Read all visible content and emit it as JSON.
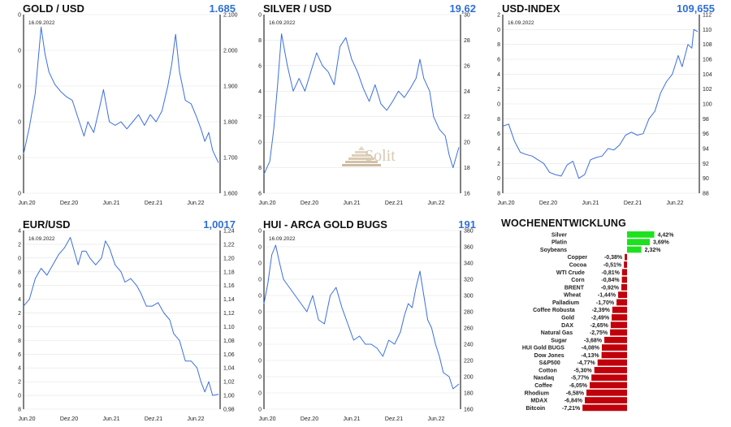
{
  "panels": [
    {
      "title": "GOLD / USD",
      "value": "1.685",
      "date": "16.09.2022",
      "source": "Solit"
    },
    {
      "title": "SILVER / USD",
      "value": "19,62",
      "date": "16.09.2022"
    },
    {
      "title": "USD-INDEX",
      "value": "109,655",
      "date": "16.09.2022"
    },
    {
      "title": "EUR/USD",
      "value": "1,0017",
      "date": "16.09.2022"
    },
    {
      "title": "HUI - ARCA GOLD BUGS",
      "value": "191",
      "date": "16.09.2022"
    }
  ],
  "weekly_title": "WOCHENENTWICKLUNG",
  "logo_text": "Solit",
  "colors": {
    "line": "#3b6fe0",
    "value": "#2f6fd6",
    "positive": "#1fe01f",
    "negative": "#c0000a",
    "grid": "#e3e3e3"
  },
  "chart_data": [
    {
      "type": "line",
      "title": "GOLD / USD",
      "x_ticks": [
        "Jun.20",
        "Dez.20",
        "Jun.21",
        "Dez.21",
        "Jun.22"
      ],
      "y_ticks": [
        "1.600",
        "1.700",
        "1.800",
        "1.900",
        "2.000",
        "2.100"
      ],
      "ylim": [
        1600,
        2100
      ],
      "series": [
        {
          "points": [
            [
              0,
              1710
            ],
            [
              0.03,
              1785
            ],
            [
              0.06,
              1880
            ],
            [
              0.09,
              2065
            ],
            [
              0.11,
              1990
            ],
            [
              0.13,
              1940
            ],
            [
              0.16,
              1905
            ],
            [
              0.19,
              1885
            ],
            [
              0.22,
              1870
            ],
            [
              0.25,
              1860
            ],
            [
              0.28,
              1810
            ],
            [
              0.31,
              1760
            ],
            [
              0.33,
              1800
            ],
            [
              0.36,
              1770
            ],
            [
              0.39,
              1840
            ],
            [
              0.41,
              1890
            ],
            [
              0.44,
              1800
            ],
            [
              0.47,
              1790
            ],
            [
              0.5,
              1800
            ],
            [
              0.53,
              1780
            ],
            [
              0.56,
              1800
            ],
            [
              0.59,
              1820
            ],
            [
              0.62,
              1790
            ],
            [
              0.65,
              1820
            ],
            [
              0.68,
              1800
            ],
            [
              0.71,
              1830
            ],
            [
              0.74,
              1900
            ],
            [
              0.76,
              1960
            ],
            [
              0.78,
              2045
            ],
            [
              0.8,
              1940
            ],
            [
              0.83,
              1860
            ],
            [
              0.86,
              1850
            ],
            [
              0.89,
              1810
            ],
            [
              0.91,
              1780
            ],
            [
              0.93,
              1745
            ],
            [
              0.95,
              1770
            ],
            [
              0.97,
              1720
            ],
            [
              1,
              1685
            ]
          ]
        }
      ]
    },
    {
      "type": "line",
      "title": "SILVER / USD",
      "x_ticks": [
        "Jun.20",
        "Dez.20",
        "Jun.21",
        "Dez.21",
        "Jun.22"
      ],
      "y_ticks": [
        "16",
        "18",
        "20",
        "22",
        "24",
        "26",
        "28",
        "30"
      ],
      "ylim": [
        16,
        30
      ],
      "series": [
        {
          "points": [
            [
              0,
              17.5
            ],
            [
              0.03,
              18.5
            ],
            [
              0.05,
              21
            ],
            [
              0.07,
              24.5
            ],
            [
              0.09,
              28.5
            ],
            [
              0.12,
              26
            ],
            [
              0.15,
              24
            ],
            [
              0.18,
              25
            ],
            [
              0.21,
              24
            ],
            [
              0.24,
              25.5
            ],
            [
              0.27,
              27
            ],
            [
              0.3,
              26
            ],
            [
              0.33,
              25.5
            ],
            [
              0.36,
              24.5
            ],
            [
              0.39,
              27.5
            ],
            [
              0.42,
              28.2
            ],
            [
              0.45,
              26.5
            ],
            [
              0.48,
              25.5
            ],
            [
              0.51,
              24.2
            ],
            [
              0.54,
              23.2
            ],
            [
              0.57,
              24.5
            ],
            [
              0.6,
              23
            ],
            [
              0.63,
              22.5
            ],
            [
              0.66,
              23.2
            ],
            [
              0.69,
              24
            ],
            [
              0.72,
              23.5
            ],
            [
              0.75,
              24.2
            ],
            [
              0.78,
              25
            ],
            [
              0.8,
              26.5
            ],
            [
              0.82,
              25
            ],
            [
              0.85,
              24
            ],
            [
              0.87,
              22
            ],
            [
              0.9,
              21
            ],
            [
              0.93,
              20.5
            ],
            [
              0.95,
              19
            ],
            [
              0.97,
              18
            ],
            [
              1,
              19.6
            ]
          ]
        }
      ]
    },
    {
      "type": "line",
      "title": "USD-INDEX",
      "x_ticks": [
        "Jun.20",
        "Dez.20",
        "Jun.21",
        "Dez.21",
        "Jun.22"
      ],
      "y_ticks": [
        "88",
        "90",
        "92",
        "94",
        "96",
        "98",
        "100",
        "102",
        "104",
        "106",
        "108",
        "110",
        "112"
      ],
      "ylim": [
        88,
        112
      ],
      "series": [
        {
          "points": [
            [
              0,
              97
            ],
            [
              0.03,
              97.3
            ],
            [
              0.06,
              95
            ],
            [
              0.09,
              93.5
            ],
            [
              0.12,
              93.2
            ],
            [
              0.15,
              93
            ],
            [
              0.18,
              92.5
            ],
            [
              0.21,
              92
            ],
            [
              0.24,
              90.8
            ],
            [
              0.27,
              90.5
            ],
            [
              0.3,
              90.3
            ],
            [
              0.33,
              91.8
            ],
            [
              0.36,
              92.3
            ],
            [
              0.39,
              90
            ],
            [
              0.42,
              90.5
            ],
            [
              0.45,
              92.5
            ],
            [
              0.48,
              92.8
            ],
            [
              0.51,
              93
            ],
            [
              0.54,
              94
            ],
            [
              0.57,
              93.8
            ],
            [
              0.6,
              94.5
            ],
            [
              0.63,
              95.8
            ],
            [
              0.66,
              96.2
            ],
            [
              0.69,
              95.8
            ],
            [
              0.72,
              96
            ],
            [
              0.75,
              98
            ],
            [
              0.78,
              99
            ],
            [
              0.81,
              101.5
            ],
            [
              0.84,
              103
            ],
            [
              0.87,
              104
            ],
            [
              0.9,
              106.5
            ],
            [
              0.92,
              105
            ],
            [
              0.95,
              108
            ],
            [
              0.97,
              107.5
            ],
            [
              0.98,
              110
            ],
            [
              1,
              109.7
            ]
          ]
        }
      ]
    },
    {
      "type": "line",
      "title": "EUR/USD",
      "x_ticks": [
        "Jun.20",
        "Dez.20",
        "Jun.21",
        "Dez.21",
        "Jun.22"
      ],
      "y_ticks": [
        "0,98",
        "1,00",
        "1,02",
        "1,04",
        "1,06",
        "1,08",
        "1,10",
        "1,12",
        "1,14",
        "1,16",
        "1,18",
        "1,20",
        "1,22",
        "1,24"
      ],
      "ylim": [
        0.98,
        1.24
      ],
      "series": [
        {
          "points": [
            [
              0,
              1.13
            ],
            [
              0.03,
              1.14
            ],
            [
              0.06,
              1.17
            ],
            [
              0.09,
              1.185
            ],
            [
              0.12,
              1.175
            ],
            [
              0.15,
              1.19
            ],
            [
              0.18,
              1.205
            ],
            [
              0.21,
              1.215
            ],
            [
              0.24,
              1.23
            ],
            [
              0.26,
              1.21
            ],
            [
              0.28,
              1.19
            ],
            [
              0.3,
              1.21
            ],
            [
              0.32,
              1.21
            ],
            [
              0.34,
              1.2
            ],
            [
              0.37,
              1.19
            ],
            [
              0.4,
              1.2
            ],
            [
              0.42,
              1.225
            ],
            [
              0.44,
              1.215
            ],
            [
              0.47,
              1.19
            ],
            [
              0.5,
              1.18
            ],
            [
              0.52,
              1.165
            ],
            [
              0.55,
              1.17
            ],
            [
              0.58,
              1.16
            ],
            [
              0.6,
              1.15
            ],
            [
              0.63,
              1.13
            ],
            [
              0.66,
              1.13
            ],
            [
              0.69,
              1.135
            ],
            [
              0.72,
              1.12
            ],
            [
              0.75,
              1.11
            ],
            [
              0.77,
              1.09
            ],
            [
              0.8,
              1.08
            ],
            [
              0.83,
              1.05
            ],
            [
              0.86,
              1.05
            ],
            [
              0.89,
              1.04
            ],
            [
              0.91,
              1.02
            ],
            [
              0.93,
              1.005
            ],
            [
              0.95,
              1.02
            ],
            [
              0.97,
              1.0
            ],
            [
              1,
              1.0017
            ]
          ]
        }
      ]
    },
    {
      "type": "line",
      "title": "HUI - ARCA GOLD BUGS",
      "x_ticks": [
        "Jun.20",
        "Dez.20",
        "Jun.21",
        "Dez.21",
        "Jun.22"
      ],
      "y_ticks": [
        "160",
        "180",
        "200",
        "220",
        "240",
        "260",
        "280",
        "300",
        "320",
        "340",
        "360",
        "380"
      ],
      "ylim": [
        160,
        380
      ],
      "series": [
        {
          "points": [
            [
              0,
              290
            ],
            [
              0.02,
              315
            ],
            [
              0.04,
              350
            ],
            [
              0.06,
              362
            ],
            [
              0.08,
              340
            ],
            [
              0.1,
              320
            ],
            [
              0.13,
              310
            ],
            [
              0.16,
              300
            ],
            [
              0.19,
              290
            ],
            [
              0.22,
              280
            ],
            [
              0.25,
              300
            ],
            [
              0.28,
              270
            ],
            [
              0.31,
              265
            ],
            [
              0.34,
              300
            ],
            [
              0.37,
              310
            ],
            [
              0.4,
              285
            ],
            [
              0.43,
              265
            ],
            [
              0.46,
              245
            ],
            [
              0.49,
              250
            ],
            [
              0.52,
              240
            ],
            [
              0.55,
              240
            ],
            [
              0.58,
              235
            ],
            [
              0.61,
              225
            ],
            [
              0.64,
              245
            ],
            [
              0.67,
              240
            ],
            [
              0.7,
              255
            ],
            [
              0.72,
              275
            ],
            [
              0.74,
              290
            ],
            [
              0.76,
              285
            ],
            [
              0.78,
              310
            ],
            [
              0.8,
              330
            ],
            [
              0.82,
              300
            ],
            [
              0.84,
              270
            ],
            [
              0.86,
              260
            ],
            [
              0.88,
              240
            ],
            [
              0.9,
              225
            ],
            [
              0.92,
              205
            ],
            [
              0.95,
              200
            ],
            [
              0.97,
              185
            ],
            [
              1,
              191
            ]
          ]
        }
      ]
    },
    {
      "type": "bar",
      "orientation": "horizontal",
      "title": "WOCHENENTWICKLUNG",
      "categories": [
        "Silver",
        "Platin",
        "Soybeans",
        "Copper",
        "Cocoa",
        "WTI Crude",
        "Corn",
        "BRENT",
        "Wheat",
        "Palladium",
        "Coffee Robusta",
        "Gold",
        "DAX",
        "Natural Gas",
        "Sugar",
        "HUI Gold BUGS",
        "Dow Jones",
        "S&P500",
        "Cotton",
        "Nasdaq",
        "Coffee",
        "Rhodium",
        "MDAX",
        "Bitcoin"
      ],
      "values": [
        4.42,
        3.69,
        2.32,
        -0.38,
        -0.51,
        -0.81,
        -0.84,
        -0.92,
        -1.44,
        -1.7,
        -2.39,
        -2.49,
        -2.65,
        -2.75,
        -3.68,
        -4.08,
        -4.13,
        -4.77,
        -5.3,
        -5.77,
        -6.05,
        -6.58,
        -6.84,
        -7.21
      ],
      "labels": [
        "4,42%",
        "3,69%",
        "2,32%",
        "-0,38%",
        "-0,51%",
        "-0,81%",
        "-0,84%",
        "-0,92%",
        "-1,44%",
        "-1,70%",
        "-2,39%",
        "-2,49%",
        "-2,65%",
        "-2,75%",
        "-3,68%",
        "-4,08%",
        "-4,13%",
        "-4,77%",
        "-5,30%",
        "-5,77%",
        "-6,05%",
        "-6,58%",
        "-6,84%",
        "-7,21%"
      ]
    }
  ]
}
